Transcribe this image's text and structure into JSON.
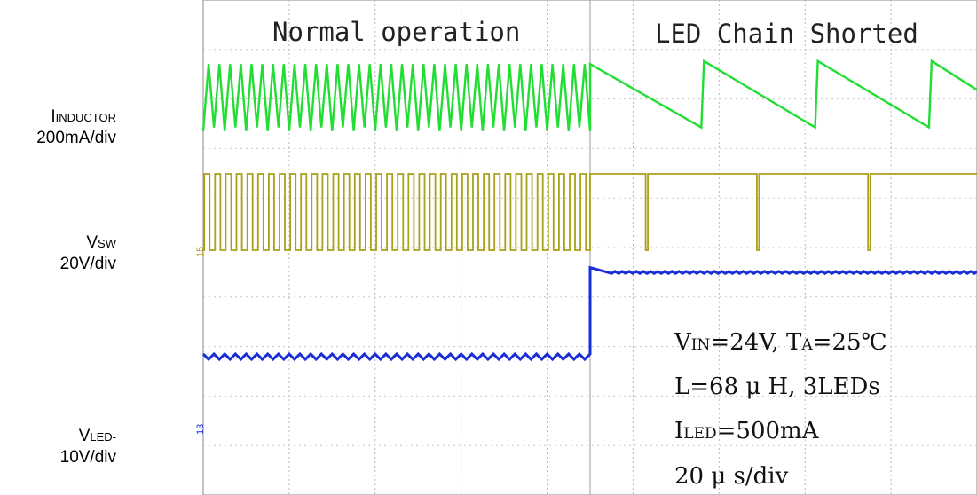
{
  "channels": [
    {
      "label_main": "I",
      "label_sub": "INDUCTOR",
      "scale": "200mA/div",
      "color": "#22dd33"
    },
    {
      "label_main": "V",
      "label_sub": "SW",
      "scale": "20V/div",
      "color": "#aaa01a",
      "marker": "15"
    },
    {
      "label_main": "V",
      "label_sub": "LED-",
      "scale": "10V/div",
      "color": "#1a2ed6",
      "marker": "13"
    }
  ],
  "annotations": {
    "left_title": "Normal operation",
    "right_title": "LED Chain Shorted",
    "cond1_a": "V",
    "cond1_b": "IN",
    "cond1_c": "=24V, T",
    "cond1_d": "A",
    "cond1_e": "=25℃",
    "cond2": "L=68 μ H, 3LEDs",
    "cond3_a": "I",
    "cond3_b": "LED",
    "cond3_c": "=500mA",
    "cond4": "20 μ s/div"
  },
  "chart_data": {
    "type": "line",
    "x_unit": "μs",
    "time_per_div": "20 μ s/div",
    "x_range_us": [
      0,
      174
    ],
    "event_time_us": 87,
    "series": [
      {
        "name": "I",
        "unit": "mA",
        "scale": "200mA/div",
        "normal": {
          "waveform": "triangle",
          "cycles": 36,
          "peak_to_peak_mA": 240
        },
        "shorted": {
          "waveform": "sawtooth",
          "period_us": 25,
          "amplitude_mA": 240
        }
      },
      {
        "name": "V",
        "unit": "V",
        "scale": "20V/div",
        "normal": {
          "waveform": "square",
          "cycles": 36,
          "high_V": 30,
          "low_V": 0
        },
        "shorted": {
          "waveform": "pulse",
          "period_us": 25,
          "high_V": 30,
          "low_V": 0,
          "pulse_width_us": 0.5
        }
      },
      {
        "name": "V",
        "unit": "V",
        "scale": "10V/div",
        "normal": {
          "waveform": "ripple",
          "level_div": 0,
          "ripple_cycles": 36
        },
        "shorted": {
          "level_div": 1.7
        }
      }
    ],
    "grid": true
  }
}
